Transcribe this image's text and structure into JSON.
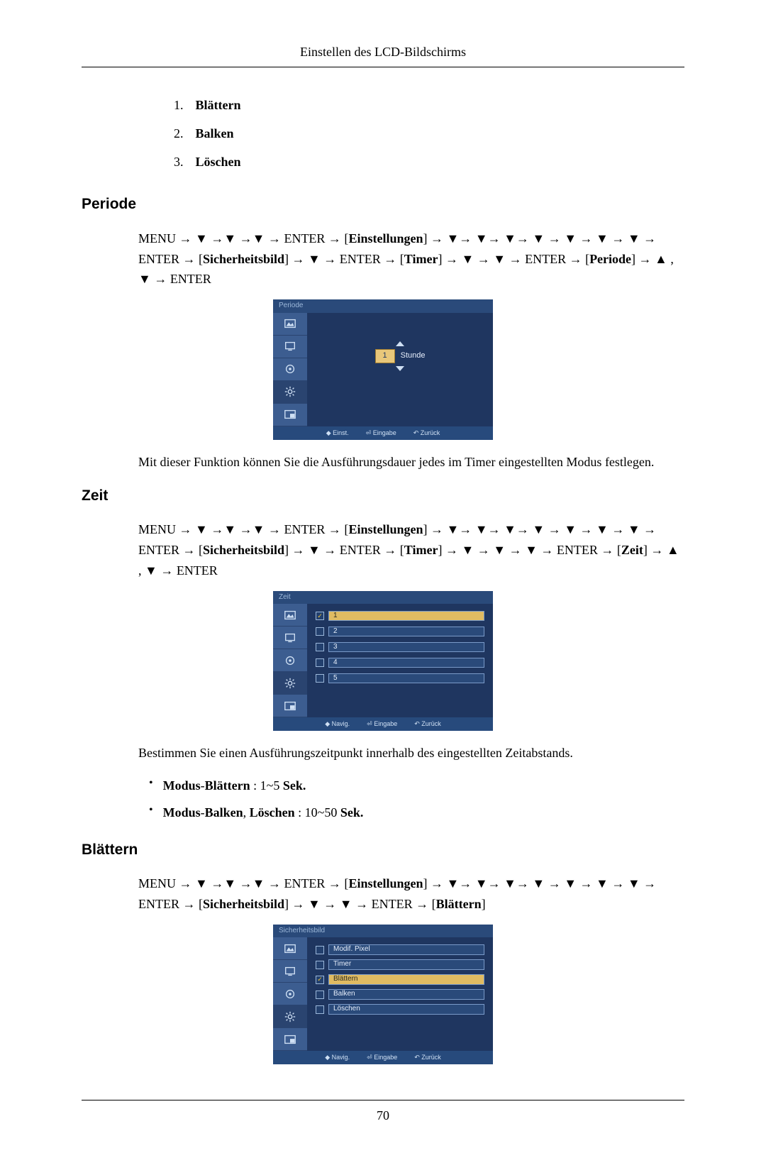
{
  "header_title": "Einstellen des LCD-Bildschirms",
  "top_list": [
    {
      "num": "1.",
      "label": "Blättern"
    },
    {
      "num": "2.",
      "label": "Balken"
    },
    {
      "num": "3.",
      "label": "Löschen"
    }
  ],
  "sections": {
    "periode": {
      "heading": "Periode",
      "nav_html": "MENU → ▼ →▼ →▼ → ENTER → [<b>Einstellungen</b>] → ▼→ ▼→ ▼→ ▼ → ▼ → ▼ → ▼ → ENTER → [<b>Sicherheitsbild</b>] → ▼ → ENTER → [<b>Timer</b>] → ▼ → ▼ → ENTER → [<b>Periode</b>] → ▲ , ▼ → ENTER",
      "osd": {
        "title": "Periode",
        "spinner_value": "1",
        "spinner_unit": "Stunde",
        "footer": [
          "◆ Einst.",
          "⏎ Eingabe",
          "↶ Zurück"
        ]
      },
      "desc": "Mit dieser Funktion können Sie die Ausführungsdauer jedes im Timer eingestellten Modus festlegen."
    },
    "zeit": {
      "heading": "Zeit",
      "nav_html": "MENU → ▼ →▼ →▼ → ENTER → [<b>Einstellungen</b>] → ▼→ ▼→ ▼→ ▼ → ▼ → ▼ → ▼ → ENTER → [<b>Sicherheitsbild</b>] → ▼ → ENTER → [<b>Timer</b>] → ▼ → ▼ → ▼ → ENTER → [<b>Zeit</b>] → ▲ , ▼ → ENTER",
      "osd": {
        "title": "Zeit",
        "rows": [
          {
            "label": "1",
            "selected": true
          },
          {
            "label": "2",
            "selected": false
          },
          {
            "label": "3",
            "selected": false
          },
          {
            "label": "4",
            "selected": false
          },
          {
            "label": "5",
            "selected": false
          }
        ],
        "footer": [
          "◆ Navig.",
          "⏎ Eingabe",
          "↶ Zurück"
        ]
      },
      "desc": "Bestimmen Sie einen Ausführungszeitpunkt innerhalb des eingestellten Zeitabstands.",
      "bullets": [
        "<b>Modus</b>-<b>Blättern</b> : 1~5 <b>Sek.</b>",
        "<b>Modus</b>-<b>Balken</b>, <b>Löschen</b> : 10~50 <b>Sek.</b>"
      ]
    },
    "blattern": {
      "heading": "Blättern",
      "nav_html": "MENU → ▼ →▼ →▼ → ENTER → [<b>Einstellungen</b>] → ▼→ ▼→ ▼→ ▼ → ▼ → ▼ → ▼ → ENTER → [<b>Sicherheitsbild</b>] → ▼ → ▼ → ENTER → [<b>Blättern</b>]",
      "osd": {
        "title": "Sicherheitsbild",
        "rows": [
          {
            "label": "Modif. Pixel",
            "selected": false
          },
          {
            "label": "Timer",
            "selected": false
          },
          {
            "label": "Blättern",
            "selected": true
          },
          {
            "label": "Balken",
            "selected": false
          },
          {
            "label": "Löschen",
            "selected": false
          }
        ],
        "footer": [
          "◆ Navig.",
          "⏎ Eingabe",
          "↶ Zurück"
        ]
      }
    }
  },
  "page_number": "70",
  "icon_names": [
    "picture-icon",
    "screen-icon",
    "circle-icon",
    "gear-icon",
    "pip-icon"
  ],
  "colors": {
    "osd_header": "#2a4a7a",
    "osd_body": "#1f3660",
    "osd_sidebar": "#3c5d90",
    "highlight": "#e0bb62",
    "text_light": "#e6eefb"
  }
}
